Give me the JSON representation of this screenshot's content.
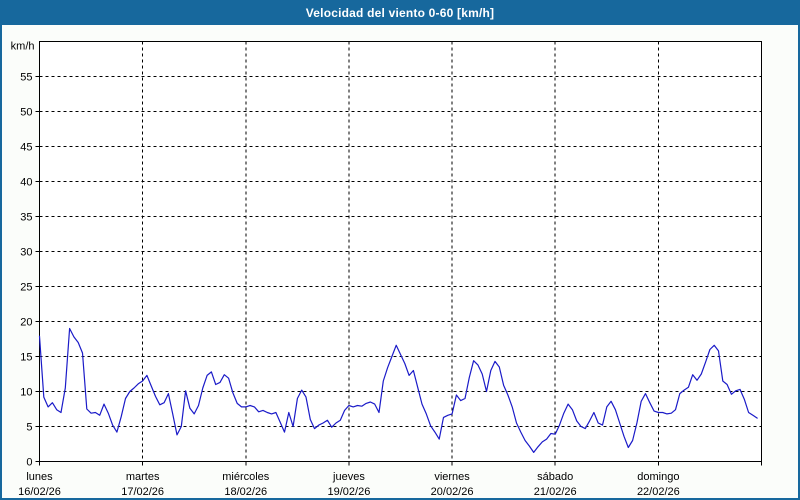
{
  "window": {
    "title": "Velocidad del viento 0-60 [km/h]"
  },
  "colors": {
    "titlebar_bg": "#17689D",
    "title_text": "#FFFFFF",
    "window_border": "#17689D",
    "window_bg": "#FBFDFA",
    "plot_bg": "#FFFFFF",
    "line": "#1B1BC8",
    "axis": "#000000",
    "grid": "#000000"
  },
  "chart_data": {
    "type": "line",
    "title": "Velocidad del viento 0-60 [km/h]",
    "unit_label": "km/h",
    "ylim": [
      0,
      60
    ],
    "yticks": [
      0,
      5,
      10,
      15,
      20,
      25,
      30,
      35,
      40,
      45,
      50,
      55
    ],
    "grid": "dashed-on",
    "legend_position": "none",
    "samples_per_day": 24,
    "x_days": [
      {
        "name": "lunes",
        "date": "16/02/26"
      },
      {
        "name": "martes",
        "date": "17/02/26"
      },
      {
        "name": "miércoles",
        "date": "18/02/26"
      },
      {
        "name": "jueves",
        "date": "19/02/26"
      },
      {
        "name": "viernes",
        "date": "20/02/26"
      },
      {
        "name": "sábado",
        "date": "21/02/26"
      },
      {
        "name": "domingo",
        "date": "22/02/26"
      }
    ],
    "series": [
      {
        "name": "Velocidad del viento",
        "values": [
          17.9,
          9.2,
          7.8,
          8.4,
          7.4,
          7.0,
          10.5,
          19.0,
          17.8,
          17.0,
          15.5,
          7.5,
          6.9,
          7.0,
          6.6,
          8.2,
          6.9,
          5.2,
          4.2,
          6.4,
          9.0,
          10.0,
          10.5,
          11.1,
          11.5,
          12.3,
          10.8,
          9.3,
          8.1,
          8.4,
          9.7,
          6.8,
          3.8,
          5.0,
          10.1,
          7.6,
          6.8,
          8.0,
          10.5,
          12.3,
          12.8,
          11.0,
          11.3,
          12.4,
          11.9,
          9.8,
          8.3,
          7.8,
          7.8,
          8.0,
          7.8,
          7.1,
          7.3,
          7.0,
          6.8,
          7.0,
          5.6,
          4.2,
          7.0,
          5.0,
          9.0,
          10.2,
          9.2,
          6.0,
          4.7,
          5.2,
          5.5,
          5.9,
          4.9,
          5.5,
          5.9,
          7.3,
          8.0,
          7.8,
          8.0,
          7.9,
          8.3,
          8.5,
          8.2,
          7.0,
          11.5,
          13.4,
          15.0,
          16.6,
          15.3,
          14.0,
          12.3,
          13.0,
          10.6,
          8.2,
          6.8,
          5.1,
          4.2,
          3.2,
          6.3,
          6.6,
          6.8,
          9.5,
          8.7,
          9.0,
          12.0,
          14.4,
          13.8,
          12.5,
          10.0,
          13.0,
          14.3,
          13.5,
          10.9,
          9.5,
          7.8,
          5.5,
          4.2,
          3.0,
          2.2,
          1.3,
          2.1,
          2.8,
          3.2,
          4.0,
          3.9,
          5.2,
          6.9,
          8.2,
          7.4,
          5.8,
          5.0,
          4.7,
          5.8,
          7.0,
          5.5,
          5.2,
          7.8,
          8.6,
          7.4,
          5.5,
          3.6,
          2.0,
          3.0,
          5.5,
          8.6,
          9.7,
          8.4,
          7.2,
          7.0,
          7.0,
          6.8,
          6.9,
          7.4,
          9.7,
          10.2,
          10.6,
          12.4,
          11.6,
          12.5,
          14.2,
          16.0,
          16.6,
          15.8,
          11.5,
          11.0,
          9.6,
          10.1,
          10.3,
          8.9,
          7.0,
          6.6,
          6.2
        ]
      }
    ]
  }
}
